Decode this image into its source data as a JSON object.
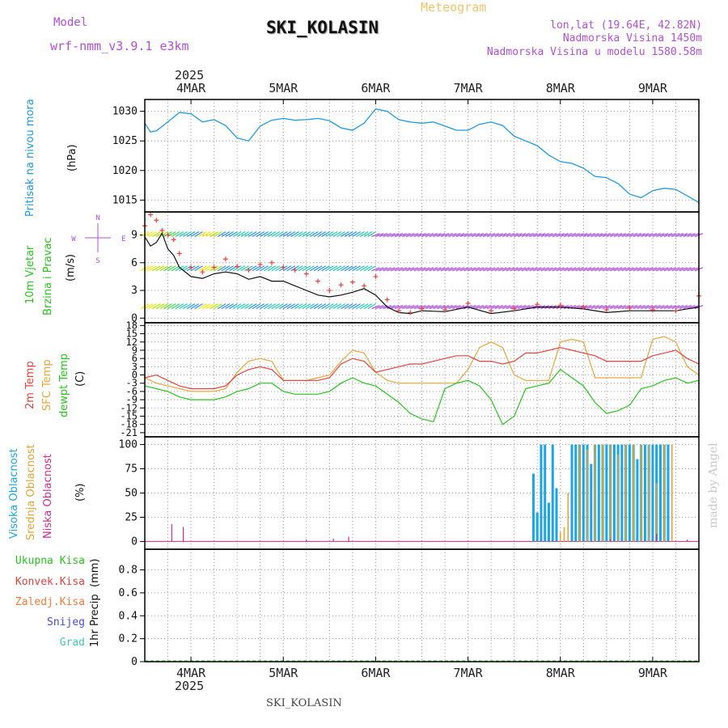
{
  "header": {
    "model_label": "Model",
    "model_name": "wrf-nmm_v3.9.1  e3km",
    "station": "SKI_KOLASIN",
    "chart_kind": "Meteogram",
    "lonlat": "lon,lat (19.64E, 42.82N)",
    "altitude": "Nadmorska Visina 1450m",
    "model_altitude": "Nadmorska Visina u modelu 1580.58m",
    "footer_station": "SKI_KOLASIN",
    "credit": "made by Angel"
  },
  "colors": {
    "pressure": "#1e9be0",
    "temp2m": "#e84040",
    "sfc": "#e8a53a",
    "dewpt": "#29c41f",
    "purple": "#b14fd8",
    "cloud_high": "#1ba5e6",
    "cloud_mid": "#e0a635",
    "cloud_low": "#d12a8a"
  },
  "chart_data": [
    {
      "type": "line",
      "name": "pressure",
      "ylabel_main": "Pritisak na nivou mora",
      "ylabel_unit": "(hPa)",
      "ylim": [
        1013,
        1032
      ],
      "yticks": [
        "1015",
        "1020",
        "1025",
        "1030"
      ],
      "ytick_values": [
        1015,
        1020,
        1025,
        1030
      ],
      "x_hours": [
        0,
        3,
        6,
        12,
        18,
        24,
        30,
        36,
        42,
        48,
        54,
        60,
        66,
        72,
        78,
        84,
        90,
        96,
        102,
        108,
        114,
        120,
        126,
        132,
        138,
        144,
        150,
        156,
        162,
        168,
        174,
        180,
        186,
        192,
        198,
        204,
        210,
        216,
        222,
        228,
        234,
        240,
        246,
        252,
        258,
        264,
        270,
        276,
        282,
        288
      ],
      "values": [
        1028.0,
        1026.5,
        1026.7,
        1028.2,
        1029.8,
        1029.6,
        1028.2,
        1028.6,
        1027.6,
        1025.5,
        1025.0,
        1027.5,
        1028.5,
        1028.8,
        1028.5,
        1028.6,
        1028.8,
        1028.4,
        1027.2,
        1026.8,
        1028.0,
        1030.4,
        1030.0,
        1028.6,
        1028.2,
        1028.0,
        1028.2,
        1027.5,
        1026.8,
        1026.8,
        1027.8,
        1028.2,
        1027.6,
        1025.8,
        1025.0,
        1024.2,
        1022.6,
        1021.5,
        1021.2,
        1020.4,
        1019.0,
        1018.8,
        1017.8,
        1016.0,
        1015.4,
        1016.6,
        1017.0,
        1016.8,
        1015.7,
        1014.6
      ]
    },
    {
      "type": "line",
      "name": "wind",
      "ylabel_main": "10m Vjetar",
      "ylabel_sub": "Brzina i Pravac",
      "ylabel_unit": "(m/s)",
      "compass": [
        "N",
        "W",
        "E",
        "S"
      ],
      "ylim": [
        -0.5,
        11.5
      ],
      "yticks": [
        "0",
        "3",
        "6",
        "9"
      ],
      "ytick_values": [
        0,
        3,
        6,
        9
      ],
      "x_hours": [
        0,
        3,
        6,
        9,
        12,
        15,
        18,
        24,
        30,
        36,
        42,
        48,
        54,
        60,
        66,
        72,
        78,
        84,
        90,
        96,
        102,
        108,
        114,
        120,
        126,
        132,
        138,
        144,
        156,
        168,
        180,
        192,
        204,
        216,
        228,
        240,
        252,
        264,
        276,
        288
      ],
      "speed": [
        8.8,
        7.8,
        8.2,
        9.2,
        7.5,
        6.8,
        5.5,
        4.5,
        4.3,
        4.8,
        5.0,
        4.8,
        4.2,
        4.5,
        4.0,
        4.0,
        3.5,
        3.0,
        2.5,
        2.3,
        2.5,
        2.8,
        3.2,
        2.5,
        1.2,
        0.6,
        0.5,
        0.8,
        0.7,
        1.2,
        0.5,
        0.8,
        1.2,
        1.2,
        1.0,
        0.6,
        0.8,
        0.8,
        0.8,
        1.2
      ],
      "gust": [
        10.0,
        11.2,
        10.6,
        9.5,
        9.0,
        8.5,
        7.0,
        5.5,
        5.0,
        5.5,
        6.4,
        5.6,
        5.2,
        5.8,
        6.0,
        5.5,
        5.2,
        4.8,
        4.0,
        3.0,
        3.6,
        3.9,
        3.5,
        4.5,
        2.0,
        0.8,
        0.6,
        1.0,
        0.9,
        1.6,
        0.8,
        1.0,
        1.5,
        1.4,
        1.2,
        0.9,
        1.1,
        0.9,
        0.8,
        2.4
      ],
      "barb_levels": [
        9,
        5.3,
        1.2
      ]
    },
    {
      "type": "line",
      "name": "temperature",
      "ylabel_main": "2m Temp",
      "ylabel_mid": "SFC Temp",
      "ylabel_sub": "dewpt Temp",
      "ylabel_unit": "(C)",
      "ylim": [
        -22.5,
        19
      ],
      "yticks": [
        "-21",
        "-18",
        "-15",
        "-12",
        "-9",
        "-6",
        "-3",
        "0",
        "3",
        "6",
        "9",
        "12",
        "15",
        "18"
      ],
      "ytick_values": [
        -21,
        -18,
        -15,
        -12,
        -9,
        -6,
        -3,
        0,
        3,
        6,
        9,
        12,
        15,
        18
      ],
      "x_hours": [
        0,
        6,
        12,
        18,
        24,
        30,
        36,
        42,
        48,
        54,
        60,
        66,
        72,
        78,
        84,
        90,
        96,
        102,
        108,
        114,
        120,
        126,
        132,
        138,
        144,
        150,
        156,
        162,
        168,
        174,
        180,
        186,
        192,
        198,
        204,
        210,
        216,
        222,
        228,
        234,
        240,
        246,
        252,
        258,
        264,
        270,
        276,
        282,
        288
      ],
      "t2m": [
        -1,
        0,
        -2,
        -4,
        -5,
        -5,
        -5,
        -4,
        0,
        2,
        3,
        2,
        -2,
        -2,
        -2,
        -2,
        -1,
        4,
        6,
        5,
        1,
        2,
        3,
        4,
        4,
        5,
        6,
        7,
        7,
        5,
        5,
        4,
        5,
        8,
        8,
        9,
        10,
        9,
        8,
        7,
        5,
        5,
        5,
        5,
        7,
        8,
        9,
        6,
        4
      ],
      "sfc": [
        -1,
        -3,
        -4,
        -5,
        -6,
        -6,
        -6,
        -5,
        1,
        5,
        6,
        5,
        -2,
        -2,
        -2,
        -1,
        0,
        5,
        9,
        8,
        1,
        -2,
        -3,
        -3,
        -3,
        -3,
        -3,
        -3,
        2,
        10,
        12,
        10,
        0,
        -2,
        -2,
        -2,
        12,
        13,
        12,
        -1,
        -1,
        -1,
        -1,
        -1,
        13,
        14,
        12,
        3,
        0
      ],
      "dewpt": [
        -4,
        -5,
        -6,
        -8,
        -9,
        -9,
        -9,
        -8,
        -6,
        -5,
        -3,
        -3,
        -6,
        -7,
        -7,
        -7,
        -6,
        -3,
        -1,
        -3,
        -4,
        -7,
        -10,
        -14,
        -16,
        -17,
        -5,
        -3,
        -2,
        -4,
        -9,
        -18,
        -15,
        -5,
        -4,
        -3,
        2,
        -1,
        -4,
        -10,
        -14,
        -13,
        -11,
        -5,
        -4,
        -2,
        -1,
        -3,
        -2
      ]
    },
    {
      "type": "bar",
      "name": "cloud",
      "ylabel_main": "Visoka Oblacnost",
      "ylabel_mid": "Srednja Oblacnost",
      "ylabel_sub": "Niska Oblacnost",
      "ylabel_unit": "(%)",
      "ylim": [
        -8,
        108
      ],
      "yticks": [
        "0",
        "25",
        "50",
        "75",
        "100"
      ],
      "ytick_values": [
        0,
        25,
        50,
        75,
        100
      ],
      "high_hours": [
        202,
        204,
        206,
        208,
        210,
        212,
        214,
        222,
        224,
        226,
        228,
        230,
        232,
        234,
        236,
        238,
        240,
        242,
        244,
        246,
        248,
        250,
        252,
        254,
        256,
        258,
        260,
        262,
        264,
        266,
        268,
        270,
        272
      ],
      "high_values": [
        70,
        30,
        100,
        100,
        40,
        100,
        55,
        100,
        100,
        100,
        100,
        100,
        80,
        100,
        100,
        100,
        100,
        100,
        100,
        100,
        100,
        100,
        100,
        100,
        85,
        100,
        100,
        100,
        100,
        100,
        100,
        100,
        100
      ],
      "mid_hours": [
        216,
        218,
        220,
        226,
        230,
        234,
        238,
        242,
        246,
        250,
        254,
        258,
        262,
        266,
        270,
        274
      ],
      "mid_values": [
        10,
        15,
        50,
        100,
        95,
        100,
        100,
        100,
        90,
        100,
        100,
        100,
        100,
        60,
        100,
        100
      ],
      "low_hours": [
        14,
        20,
        84,
        98,
        106,
        242,
        266,
        282
      ],
      "low_values": [
        18,
        15,
        2,
        3,
        5,
        2,
        8,
        2
      ]
    },
    {
      "type": "bar",
      "name": "precipitation",
      "ylabel_main": "1hr Precip",
      "ylabel_unit": "(mm)",
      "legend": [
        "Ukupna Kisa",
        "Konvek.Kisa",
        "Zaledj.Kisa",
        "Snijeg",
        "Grad"
      ],
      "ylim": [
        0,
        0.98
      ],
      "yticks": [
        "0",
        "0.2",
        "0.4",
        "0.6",
        "0.8"
      ],
      "ytick_values": [
        0,
        0.2,
        0.4,
        0.6,
        0.8
      ],
      "values": []
    }
  ],
  "axis": {
    "year": "2025",
    "day_labels": [
      "4MAR",
      "5MAR",
      "6MAR",
      "7MAR",
      "8MAR",
      "9MAR"
    ],
    "day_hours": [
      24,
      72,
      120,
      168,
      216,
      264
    ],
    "x_range_hours": [
      0,
      288
    ]
  }
}
